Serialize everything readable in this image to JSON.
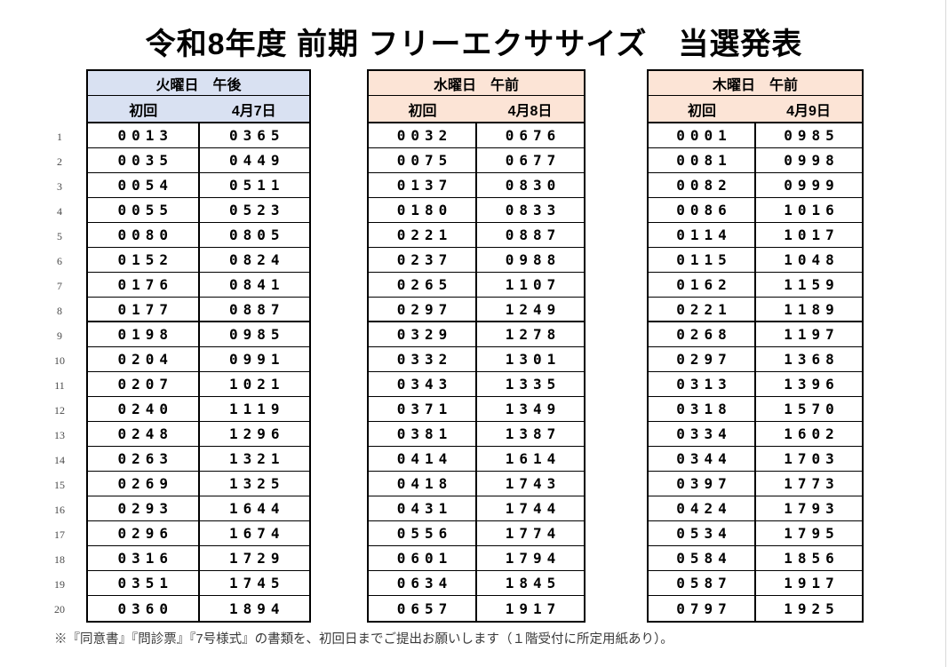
{
  "title": "令和8年度 前期 フリーエクササイズ　当選発表",
  "footer": "※『同意書』『問診票』『7号様式』の書類を、初回日までご提出お願いします（１階受付に所定用紙あり）。",
  "row_numbers": [
    "1",
    "2",
    "3",
    "4",
    "5",
    "6",
    "7",
    "8",
    "9",
    "10",
    "11",
    "12",
    "13",
    "14",
    "15",
    "16",
    "17",
    "18",
    "19",
    "20"
  ],
  "border_color": "#000000",
  "tables": [
    {
      "id": "tuesday",
      "day": "火曜日　午後",
      "first_label": "初回",
      "date": "4月7日",
      "header_bg": "#D9E1F2",
      "rows": [
        [
          "0013",
          "0365"
        ],
        [
          "0035",
          "0449"
        ],
        [
          "0054",
          "0511"
        ],
        [
          "0055",
          "0523"
        ],
        [
          "0080",
          "0805"
        ],
        [
          "0152",
          "0824"
        ],
        [
          "0176",
          "0841"
        ],
        [
          "0177",
          "0887"
        ],
        [
          "0198",
          "0985"
        ],
        [
          "0204",
          "0991"
        ],
        [
          "0207",
          "1021"
        ],
        [
          "0240",
          "1119"
        ],
        [
          "0248",
          "1296"
        ],
        [
          "0263",
          "1321"
        ],
        [
          "0269",
          "1325"
        ],
        [
          "0293",
          "1644"
        ],
        [
          "0296",
          "1674"
        ],
        [
          "0316",
          "1729"
        ],
        [
          "0351",
          "1745"
        ],
        [
          "0360",
          "1894"
        ]
      ]
    },
    {
      "id": "wednesday",
      "day": "水曜日　午前",
      "first_label": "初回",
      "date": "4月8日",
      "header_bg": "#FCE4D6",
      "rows": [
        [
          "0032",
          "0676"
        ],
        [
          "0075",
          "0677"
        ],
        [
          "0137",
          "0830"
        ],
        [
          "0180",
          "0833"
        ],
        [
          "0221",
          "0887"
        ],
        [
          "0237",
          "0988"
        ],
        [
          "0265",
          "1107"
        ],
        [
          "0297",
          "1249"
        ],
        [
          "0329",
          "1278"
        ],
        [
          "0332",
          "1301"
        ],
        [
          "0343",
          "1335"
        ],
        [
          "0371",
          "1349"
        ],
        [
          "0381",
          "1387"
        ],
        [
          "0414",
          "1614"
        ],
        [
          "0418",
          "1743"
        ],
        [
          "0431",
          "1744"
        ],
        [
          "0556",
          "1774"
        ],
        [
          "0601",
          "1794"
        ],
        [
          "0634",
          "1845"
        ],
        [
          "0657",
          "1917"
        ]
      ]
    },
    {
      "id": "thursday",
      "day": "木曜日　午前",
      "first_label": "初回",
      "date": "4月9日",
      "header_bg": "#FCE4D6",
      "rows": [
        [
          "0001",
          "0985"
        ],
        [
          "0081",
          "0998"
        ],
        [
          "0082",
          "0999"
        ],
        [
          "0086",
          "1016"
        ],
        [
          "0114",
          "1017"
        ],
        [
          "0115",
          "1048"
        ],
        [
          "0162",
          "1159"
        ],
        [
          "0221",
          "1189"
        ],
        [
          "0268",
          "1197"
        ],
        [
          "0297",
          "1368"
        ],
        [
          "0313",
          "1396"
        ],
        [
          "0318",
          "1570"
        ],
        [
          "0334",
          "1602"
        ],
        [
          "0344",
          "1703"
        ],
        [
          "0397",
          "1773"
        ],
        [
          "0424",
          "1793"
        ],
        [
          "0534",
          "1795"
        ],
        [
          "0584",
          "1856"
        ],
        [
          "0587",
          "1917"
        ],
        [
          "0797",
          "1925"
        ]
      ]
    }
  ]
}
